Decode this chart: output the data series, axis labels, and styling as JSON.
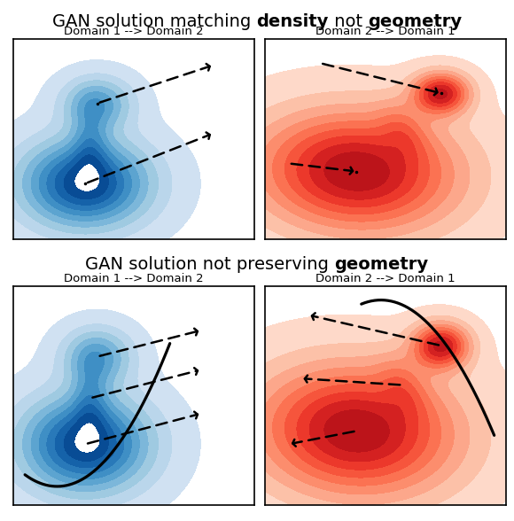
{
  "title1_parts": [
    [
      "GAN solution matching ",
      false
    ],
    [
      "density",
      true
    ],
    [
      " not ",
      false
    ],
    [
      "geometry",
      true
    ]
  ],
  "title2_parts": [
    [
      "GAN solution not preserving ",
      false
    ],
    [
      "geometry",
      true
    ]
  ],
  "subtitle_tl": "Domain 1 --> Domain 2",
  "subtitle_tr": "Domain 2 --> Domain 1",
  "subtitle_bl": "Domain 1 --> Domain 2",
  "subtitle_br": "Domain 2 --> Domain 1",
  "bg_color": "#ffffff",
  "blue_levels_min": 0.03,
  "blue_levels_max": 1.0,
  "blue_cmap_min": 0.2,
  "blue_cmap_max": 0.98,
  "red_levels_min": 0.03,
  "red_levels_max": 1.0,
  "red_cmap_min": 0.15,
  "red_cmap_max": 0.88,
  "n_levels": 10,
  "fontsize_title": 14,
  "fontsize_sub": 9.5,
  "arrow_lw": 1.8,
  "arrow_mutation_scale": 13,
  "curve_lw": 2.3
}
